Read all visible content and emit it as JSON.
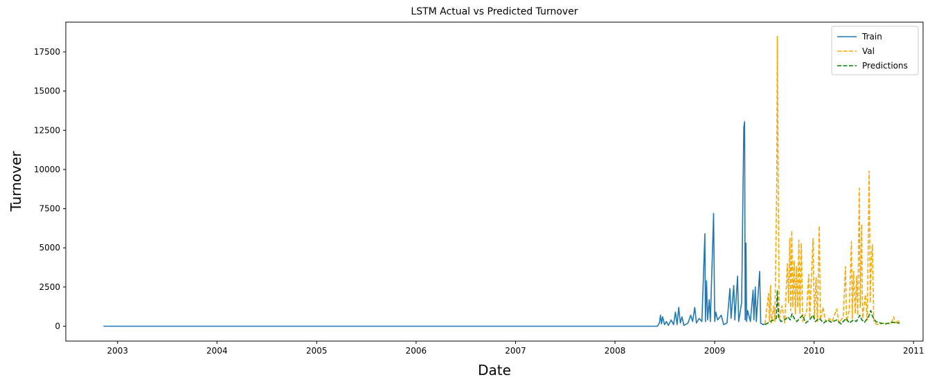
{
  "chart_data": {
    "type": "line",
    "title": "LSTM Actual vs Predicted Turnover",
    "xlabel": "Date",
    "ylabel": "Turnover",
    "x_type": "date",
    "xlim": [
      "2002-06-25",
      "2011-02-05"
    ],
    "ylim": [
      -950,
      19400
    ],
    "x_ticks": [
      "2003-01-01",
      "2004-01-01",
      "2005-01-01",
      "2006-01-01",
      "2007-01-01",
      "2008-01-01",
      "2009-01-01",
      "2010-01-01",
      "2011-01-01"
    ],
    "x_tick_labels": [
      "2003",
      "2004",
      "2005",
      "2006",
      "2007",
      "2008",
      "2009",
      "2010",
      "2011"
    ],
    "y_ticks": [
      0,
      2500,
      5000,
      7500,
      10000,
      12500,
      15000,
      17500
    ],
    "y_tick_labels": [
      "0",
      "2500",
      "5000",
      "7500",
      "10000",
      "12500",
      "15000",
      "17500"
    ],
    "grid": false,
    "legend_position": "upper-right",
    "series": [
      {
        "name": "Train",
        "color": "#1f77b4",
        "dash": "solid",
        "points": [
          [
            "2002-11-10",
            0
          ],
          [
            "2008-06-05",
            0
          ],
          [
            "2008-06-12",
            200
          ],
          [
            "2008-06-16",
            700
          ],
          [
            "2008-06-20",
            150
          ],
          [
            "2008-06-24",
            600
          ],
          [
            "2008-07-01",
            100
          ],
          [
            "2008-07-08",
            300
          ],
          [
            "2008-07-15",
            50
          ],
          [
            "2008-07-25",
            400
          ],
          [
            "2008-08-03",
            100
          ],
          [
            "2008-08-10",
            900
          ],
          [
            "2008-08-16",
            100
          ],
          [
            "2008-08-22",
            1200
          ],
          [
            "2008-08-28",
            200
          ],
          [
            "2008-09-03",
            600
          ],
          [
            "2008-09-10",
            50
          ],
          [
            "2008-09-25",
            200
          ],
          [
            "2008-10-05",
            700
          ],
          [
            "2008-10-12",
            300
          ],
          [
            "2008-10-20",
            1200
          ],
          [
            "2008-10-26",
            200
          ],
          [
            "2008-11-05",
            500
          ],
          [
            "2008-11-15",
            300
          ],
          [
            "2008-11-26",
            5900
          ],
          [
            "2008-11-28",
            300
          ],
          [
            "2008-12-02",
            2900
          ],
          [
            "2008-12-06",
            400
          ],
          [
            "2008-12-12",
            1700
          ],
          [
            "2008-12-16",
            300
          ],
          [
            "2008-12-28",
            7200
          ],
          [
            "2009-01-01",
            300
          ],
          [
            "2009-01-05",
            900
          ],
          [
            "2009-01-12",
            400
          ],
          [
            "2009-01-25",
            700
          ],
          [
            "2009-02-03",
            100
          ],
          [
            "2009-02-15",
            200
          ],
          [
            "2009-02-26",
            2400
          ],
          [
            "2009-03-02",
            500
          ],
          [
            "2009-03-12",
            2600
          ],
          [
            "2009-03-16",
            400
          ],
          [
            "2009-03-26",
            3200
          ],
          [
            "2009-03-30",
            300
          ],
          [
            "2009-04-10",
            1500
          ],
          [
            "2009-04-18",
            12700
          ],
          [
            "2009-04-21",
            13050
          ],
          [
            "2009-04-23",
            400
          ],
          [
            "2009-04-26",
            5300
          ],
          [
            "2009-04-28",
            300
          ],
          [
            "2009-05-02",
            1000
          ],
          [
            "2009-05-12",
            300
          ],
          [
            "2009-05-22",
            2300
          ],
          [
            "2009-05-25",
            400
          ],
          [
            "2009-05-30",
            2500
          ],
          [
            "2009-06-03",
            300
          ],
          [
            "2009-06-15",
            3500
          ],
          [
            "2009-06-19",
            200
          ],
          [
            "2009-06-28",
            100
          ],
          [
            "2009-07-05",
            150
          ]
        ]
      },
      {
        "name": "Val",
        "color": "#ffa500",
        "dash": "dashed",
        "points": [
          [
            "2009-07-05",
            150
          ],
          [
            "2009-07-18",
            2100
          ],
          [
            "2009-07-21",
            300
          ],
          [
            "2009-07-25",
            2600
          ],
          [
            "2009-07-28",
            200
          ],
          [
            "2009-08-06",
            1300
          ],
          [
            "2009-08-10",
            300
          ],
          [
            "2009-08-17",
            9300
          ],
          [
            "2009-08-19",
            18500
          ],
          [
            "2009-08-22",
            9500
          ],
          [
            "2009-08-26",
            400
          ],
          [
            "2009-09-05",
            1300
          ],
          [
            "2009-09-15",
            200
          ],
          [
            "2009-09-25",
            4000
          ],
          [
            "2009-09-29",
            1500
          ],
          [
            "2009-10-04",
            5600
          ],
          [
            "2009-10-07",
            1000
          ],
          [
            "2009-10-11",
            6100
          ],
          [
            "2009-10-15",
            1200
          ],
          [
            "2009-10-20",
            4200
          ],
          [
            "2009-10-24",
            800
          ],
          [
            "2009-10-28",
            3800
          ],
          [
            "2009-11-02",
            1200
          ],
          [
            "2009-11-06",
            5500
          ],
          [
            "2009-11-10",
            800
          ],
          [
            "2009-11-15",
            5300
          ],
          [
            "2009-11-20",
            300
          ],
          [
            "2009-12-05",
            1000
          ],
          [
            "2009-12-12",
            3300
          ],
          [
            "2009-12-16",
            500
          ],
          [
            "2009-12-28",
            5600
          ],
          [
            "2010-01-02",
            500
          ],
          [
            "2010-01-08",
            3100
          ],
          [
            "2010-01-13",
            300
          ],
          [
            "2010-01-20",
            6400
          ],
          [
            "2010-01-24",
            400
          ],
          [
            "2010-02-03",
            1200
          ],
          [
            "2010-02-12",
            300
          ],
          [
            "2010-02-25",
            500
          ],
          [
            "2010-03-08",
            300
          ],
          [
            "2010-03-25",
            1100
          ],
          [
            "2010-04-02",
            200
          ],
          [
            "2010-04-18",
            600
          ],
          [
            "2010-04-26",
            3800
          ],
          [
            "2010-04-30",
            300
          ],
          [
            "2010-05-10",
            1000
          ],
          [
            "2010-05-18",
            5400
          ],
          [
            "2010-05-21",
            500
          ],
          [
            "2010-05-26",
            3500
          ],
          [
            "2010-06-01",
            800
          ],
          [
            "2010-06-06",
            3200
          ],
          [
            "2010-06-10",
            700
          ],
          [
            "2010-06-16",
            8800
          ],
          [
            "2010-06-19",
            1200
          ],
          [
            "2010-06-24",
            6500
          ],
          [
            "2010-06-28",
            500
          ],
          [
            "2010-07-08",
            2000
          ],
          [
            "2010-07-15",
            400
          ],
          [
            "2010-07-22",
            9900
          ],
          [
            "2010-07-26",
            1500
          ],
          [
            "2010-07-30",
            4200
          ],
          [
            "2010-08-03",
            5200
          ],
          [
            "2010-08-08",
            300
          ],
          [
            "2010-08-20",
            100
          ],
          [
            "2010-09-15",
            200
          ],
          [
            "2010-10-10",
            150
          ],
          [
            "2010-10-20",
            600
          ],
          [
            "2010-10-26",
            200
          ],
          [
            "2010-11-05",
            400
          ],
          [
            "2010-11-10",
            150
          ]
        ]
      },
      {
        "name": "Predictions",
        "color": "#008000",
        "dash": "dashed",
        "points": [
          [
            "2009-07-05",
            100
          ],
          [
            "2009-07-25",
            300
          ],
          [
            "2009-08-05",
            400
          ],
          [
            "2009-08-15",
            500
          ],
          [
            "2009-08-19",
            2300
          ],
          [
            "2009-08-23",
            600
          ],
          [
            "2009-09-01",
            300
          ],
          [
            "2009-09-15",
            400
          ],
          [
            "2009-09-28",
            600
          ],
          [
            "2009-10-05",
            400
          ],
          [
            "2009-10-12",
            800
          ],
          [
            "2009-10-20",
            500
          ],
          [
            "2009-10-30",
            300
          ],
          [
            "2009-11-08",
            500
          ],
          [
            "2009-11-20",
            700
          ],
          [
            "2009-12-01",
            200
          ],
          [
            "2009-12-15",
            400
          ],
          [
            "2009-12-28",
            700
          ],
          [
            "2010-01-05",
            300
          ],
          [
            "2010-01-20",
            500
          ],
          [
            "2010-02-05",
            200
          ],
          [
            "2010-02-20",
            400
          ],
          [
            "2010-03-05",
            250
          ],
          [
            "2010-03-25",
            400
          ],
          [
            "2010-04-10",
            150
          ],
          [
            "2010-04-28",
            500
          ],
          [
            "2010-05-10",
            200
          ],
          [
            "2010-05-25",
            400
          ],
          [
            "2010-06-05",
            300
          ],
          [
            "2010-06-18",
            700
          ],
          [
            "2010-06-25",
            400
          ],
          [
            "2010-07-05",
            250
          ],
          [
            "2010-07-20",
            600
          ],
          [
            "2010-07-28",
            1000
          ],
          [
            "2010-08-03",
            650
          ],
          [
            "2010-08-15",
            300
          ],
          [
            "2010-09-01",
            200
          ],
          [
            "2010-09-20",
            150
          ],
          [
            "2010-10-15",
            250
          ],
          [
            "2010-11-10",
            200
          ]
        ]
      }
    ]
  }
}
